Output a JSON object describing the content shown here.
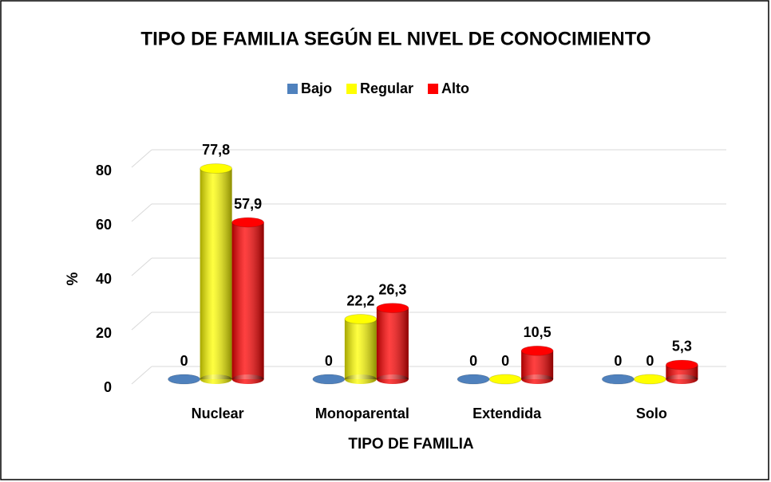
{
  "chart_data": {
    "type": "bar3d",
    "title": "TIPO DE FAMILIA SEGÚN EL NIVEL DE CONOCIMIENTO",
    "x_label": "TIPO DE FAMILIA",
    "y_label": "%",
    "categories": [
      "Nuclear",
      "Monoparental",
      "Extendida",
      "Solo"
    ],
    "series": [
      {
        "name": "Bajo",
        "color": "#4f81bd",
        "values": [
          0,
          0,
          0,
          0
        ],
        "value_labels": [
          "0",
          "0",
          "0",
          "0"
        ]
      },
      {
        "name": "Regular",
        "color": "#ffff00",
        "values": [
          77.8,
          22.2,
          0,
          0
        ],
        "value_labels": [
          "77,8",
          "22,2",
          "0",
          "0"
        ]
      },
      {
        "name": "Alto",
        "color": "#ff0000",
        "values": [
          57.9,
          26.3,
          10.5,
          5.3
        ],
        "value_labels": [
          "57,9",
          "26,3",
          "10,5",
          "5,3"
        ]
      }
    ],
    "ylim": [
      0,
      80
    ],
    "yticks": [
      0,
      20,
      40,
      60,
      80
    ],
    "grid": true,
    "legend": "top"
  }
}
